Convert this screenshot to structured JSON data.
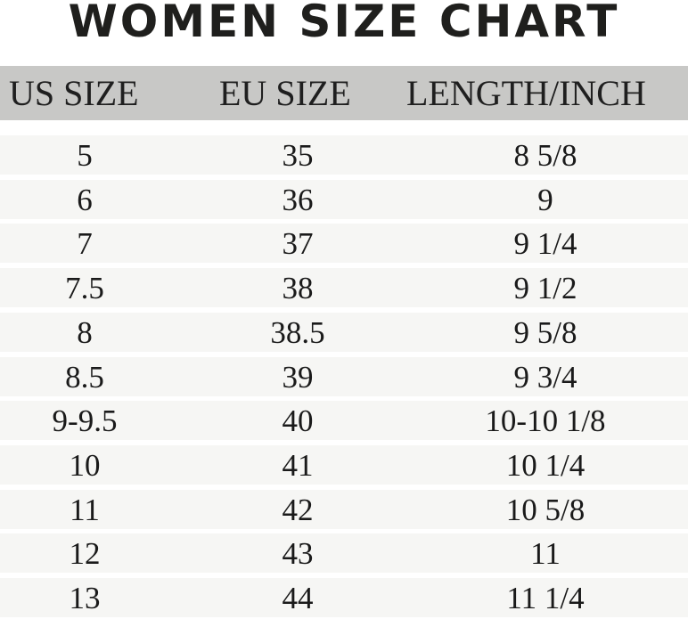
{
  "title": "WOMEN SIZE CHART",
  "colors": {
    "header_bg": "#c8c8c6",
    "row_bg": "#f6f6f4",
    "text": "#1a1a1a"
  },
  "chart_data": {
    "type": "table",
    "title": "WOMEN SIZE CHART",
    "columns": [
      "US SIZE",
      "EU SIZE",
      "LENGTH/INCH"
    ],
    "rows": [
      [
        "5",
        "35",
        "8 5/8"
      ],
      [
        "6",
        "36",
        "9"
      ],
      [
        "7",
        "37",
        "9 1/4"
      ],
      [
        "7.5",
        "38",
        "9 1/2"
      ],
      [
        "8",
        "38.5",
        "9 5/8"
      ],
      [
        "8.5",
        "39",
        "9 3/4"
      ],
      [
        "9-9.5",
        "40",
        "10-10 1/8"
      ],
      [
        "10",
        "41",
        "10 1/4"
      ],
      [
        "11",
        "42",
        "10 5/8"
      ],
      [
        "12",
        "43",
        "11"
      ],
      [
        "13",
        "44",
        "11 1/4"
      ]
    ]
  }
}
